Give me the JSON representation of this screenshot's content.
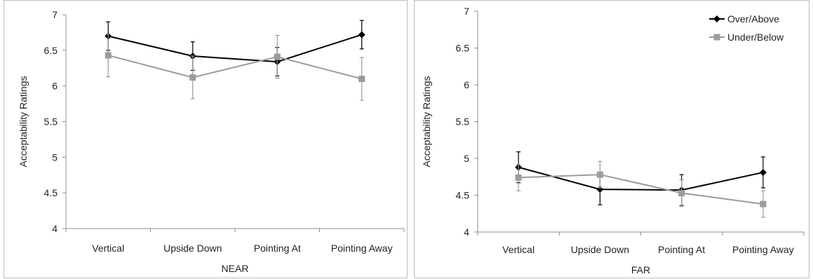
{
  "chart_data": [
    {
      "type": "line",
      "title": "",
      "xlabel": "NEAR",
      "ylabel": "Acceptability Ratings",
      "ylim": [
        4,
        7
      ],
      "yticks": [
        "4",
        "4.5",
        "5",
        "5.5",
        "6",
        "6.5",
        "7"
      ],
      "categories": [
        "Vertical",
        "Upside Down",
        "Pointing At",
        "Pointing Away"
      ],
      "grid": false,
      "legend": "none",
      "series": [
        {
          "name": "Over/Above",
          "color": "#000000",
          "marker": "diamond",
          "values": [
            6.7,
            6.42,
            6.34,
            6.72
          ],
          "error": [
            0.2,
            0.2,
            0.2,
            0.2
          ]
        },
        {
          "name": "Under/Below",
          "color": "#9b9b9b",
          "marker": "square",
          "values": [
            6.43,
            6.12,
            6.41,
            6.1
          ],
          "error": [
            0.3,
            0.3,
            0.3,
            0.3
          ]
        }
      ]
    },
    {
      "type": "line",
      "title": "",
      "xlabel": "FAR",
      "ylabel": "Acceptability Ratings",
      "ylim": [
        4,
        7
      ],
      "yticks": [
        "4",
        "4.5",
        "5",
        "5.5",
        "6",
        "6.5",
        "7"
      ],
      "categories": [
        "Vertical",
        "Upside Down",
        "Pointing At",
        "Pointing Away"
      ],
      "grid": false,
      "legend": "top-right",
      "series": [
        {
          "name": "Over/Above",
          "color": "#000000",
          "marker": "diamond",
          "values": [
            4.88,
            4.58,
            4.57,
            4.81
          ],
          "error": [
            0.21,
            0.21,
            0.21,
            0.21
          ]
        },
        {
          "name": "Under/Below",
          "color": "#9b9b9b",
          "marker": "square",
          "values": [
            4.74,
            4.78,
            4.53,
            4.38
          ],
          "error": [
            0.18,
            0.18,
            0.18,
            0.18
          ]
        }
      ]
    }
  ]
}
